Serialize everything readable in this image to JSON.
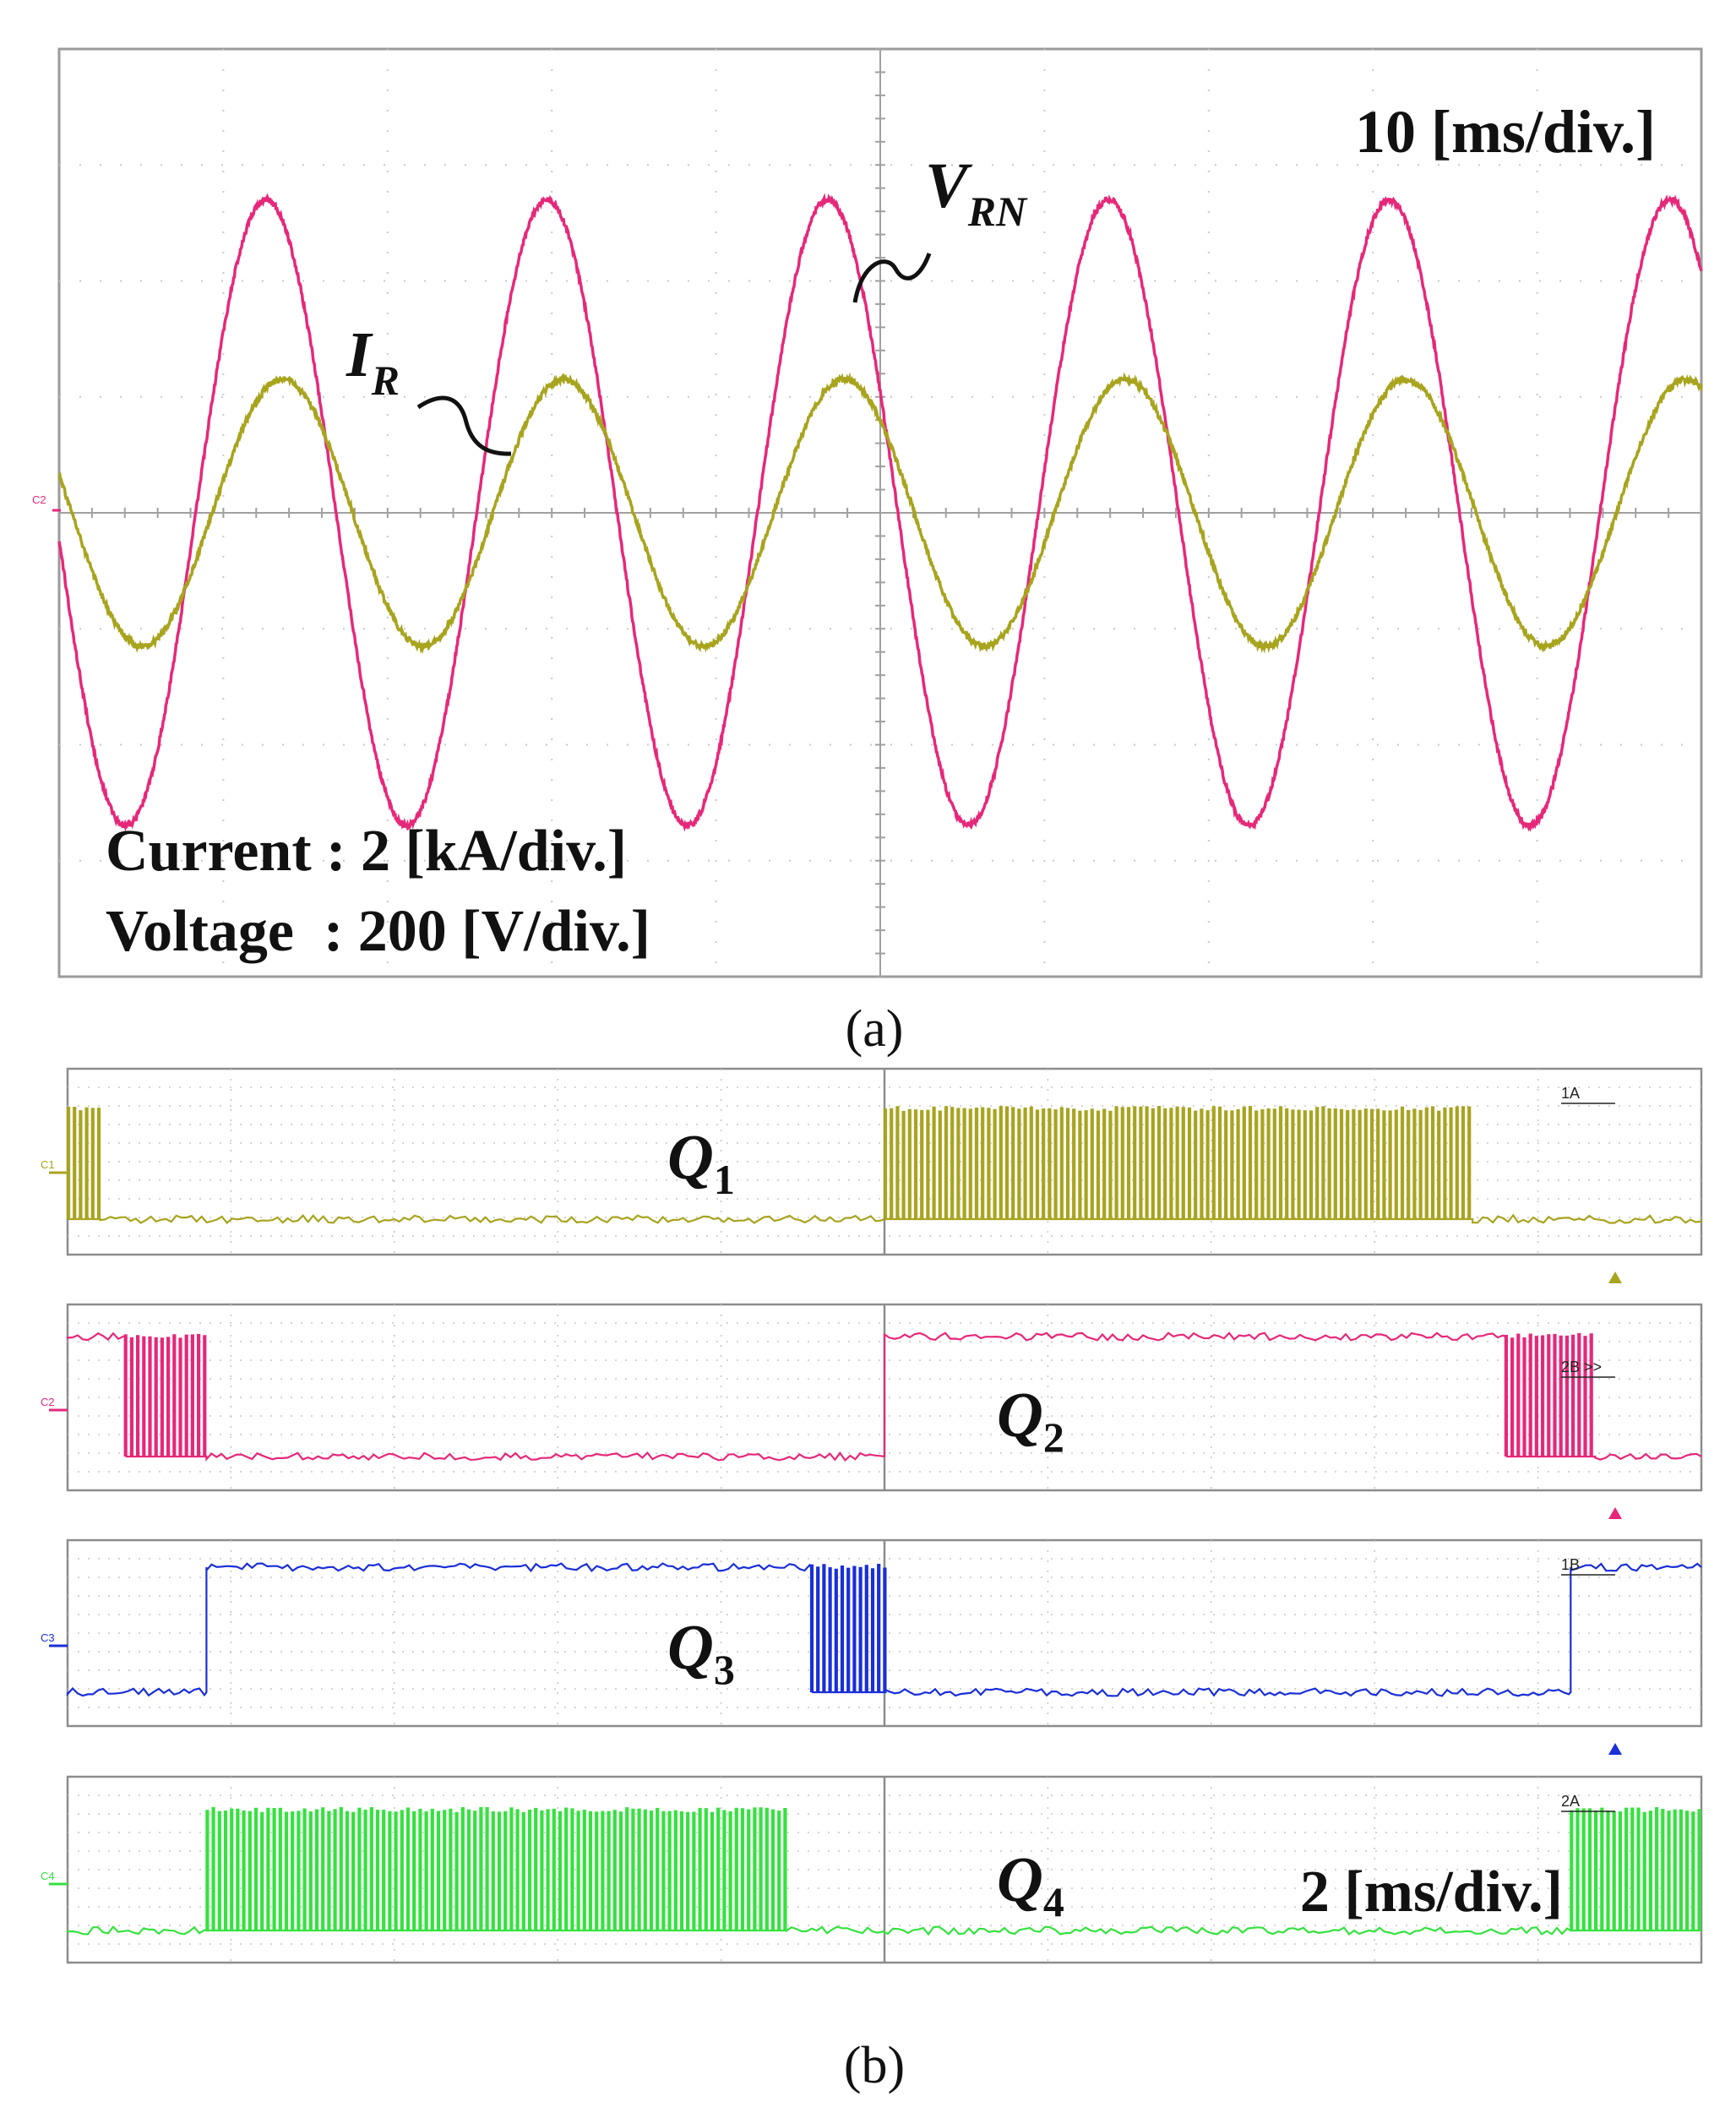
{
  "chart_data": [
    {
      "type": "line",
      "panel": "a",
      "caption": "(a)",
      "time_scale": "10 [ms/div.]",
      "scales": [
        "Current : 2 [kA/div.]",
        "Voltage  : 200 [V/div.]"
      ],
      "xlim_div": [
        0,
        10
      ],
      "ylim_div": [
        -4,
        4
      ],
      "grid": true,
      "channel_marker": "C2",
      "series": [
        {
          "name": "V_RN",
          "label_main": "V",
          "label_sub": "RN",
          "color": "#e6287a",
          "waveform": "sine",
          "amplitude_div": 2.7,
          "period_ms": 17.1,
          "peak_time_ms": 12.6
        },
        {
          "name": "I_R",
          "label_main": "I",
          "label_sub": "R",
          "color": "#a8a41e",
          "waveform": "sine",
          "amplitude_div": 1.15,
          "period_ms": 17.1,
          "peak_time_ms": 13.6
        }
      ]
    },
    {
      "type": "line",
      "panel": "b",
      "caption": "(b)",
      "time_scale": "2 [ms/div.]",
      "xlim_div": [
        0,
        10
      ],
      "grid": true,
      "subplots": [
        {
          "channel": "C1",
          "main": "Q",
          "sub": "1",
          "color": "#a8a41e",
          "tag": "1A",
          "segments": [
            {
              "from": 0.0,
              "to": 0.2,
              "state": "pwm"
            },
            {
              "from": 0.2,
              "to": 5.0,
              "state": "low"
            },
            {
              "from": 5.0,
              "to": 8.6,
              "state": "pwm"
            },
            {
              "from": 8.6,
              "to": 10.0,
              "state": "low"
            }
          ]
        },
        {
          "channel": "C2",
          "main": "Q",
          "sub": "2",
          "color": "#e6287a",
          "tag": "2B >>",
          "segments": [
            {
              "from": 0.0,
              "to": 0.35,
              "state": "high"
            },
            {
              "from": 0.35,
              "to": 0.85,
              "state": "pwm"
            },
            {
              "from": 0.85,
              "to": 5.0,
              "state": "low"
            },
            {
              "from": 5.0,
              "to": 8.8,
              "state": "high"
            },
            {
              "from": 8.8,
              "to": 9.35,
              "state": "pwm"
            },
            {
              "from": 9.35,
              "to": 10.0,
              "state": "low"
            }
          ]
        },
        {
          "channel": "C3",
          "main": "Q",
          "sub": "3",
          "color": "#1a2fd8",
          "tag": "1B",
          "segments": [
            {
              "from": 0.0,
              "to": 0.85,
              "state": "low"
            },
            {
              "from": 0.85,
              "to": 4.55,
              "state": "high"
            },
            {
              "from": 4.55,
              "to": 5.0,
              "state": "pwm"
            },
            {
              "from": 5.0,
              "to": 9.2,
              "state": "low"
            },
            {
              "from": 9.2,
              "to": 10.0,
              "state": "high"
            }
          ]
        },
        {
          "channel": "C4",
          "main": "Q",
          "sub": "4",
          "color": "#35e23f",
          "tag": "2A",
          "segments": [
            {
              "from": 0.0,
              "to": 0.85,
              "state": "low"
            },
            {
              "from": 0.85,
              "to": 4.4,
              "state": "pwm"
            },
            {
              "from": 4.4,
              "to": 9.2,
              "state": "low"
            },
            {
              "from": 9.2,
              "to": 10.0,
              "state": "pwm"
            }
          ]
        }
      ]
    }
  ]
}
